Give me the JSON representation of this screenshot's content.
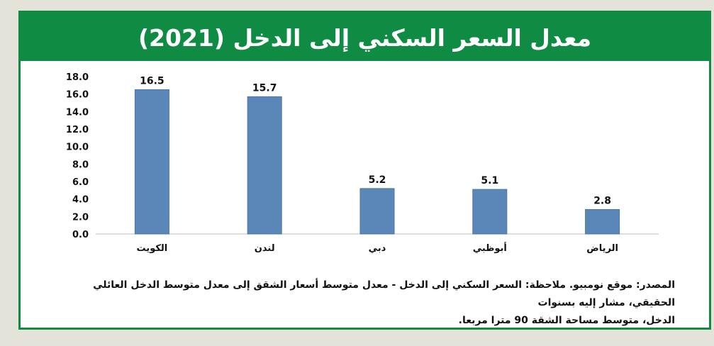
{
  "chart_data": {
    "type": "bar",
    "title": "معدل السعر السكني إلى الدخل (2021)",
    "categories": [
      "الكويت",
      "لندن",
      "دبي",
      "أبوظبي",
      "الرياض"
    ],
    "values": [
      16.5,
      15.7,
      5.2,
      5.1,
      2.8
    ],
    "data_labels": [
      "16.5",
      "15.7",
      "5.2",
      "5.1",
      "2.8"
    ],
    "yticks": [
      "0.0",
      "2.0",
      "4.0",
      "6.0",
      "8.0",
      "10.0",
      "12.0",
      "14.0",
      "16.0",
      "18.0"
    ],
    "ylim": [
      0,
      18
    ],
    "xlabel": "",
    "ylabel": "",
    "grid": false,
    "legend": "none",
    "bar_color": "#5b87b8"
  },
  "note": {
    "line1": "المصدر: موقع نومبيو. ملاحظة: السعر السكني إلى الدخل - معدل متوسط أسعار الشقق إلى معدل متوسط الدخل العائلي الحقيقي، مشار إليه بسنوات",
    "line2": "الدخل، متوسط مساحة الشقة 90 مترا مربعا."
  },
  "colors": {
    "frame_green": "#0f8b44",
    "background": "#e4e3d9"
  }
}
